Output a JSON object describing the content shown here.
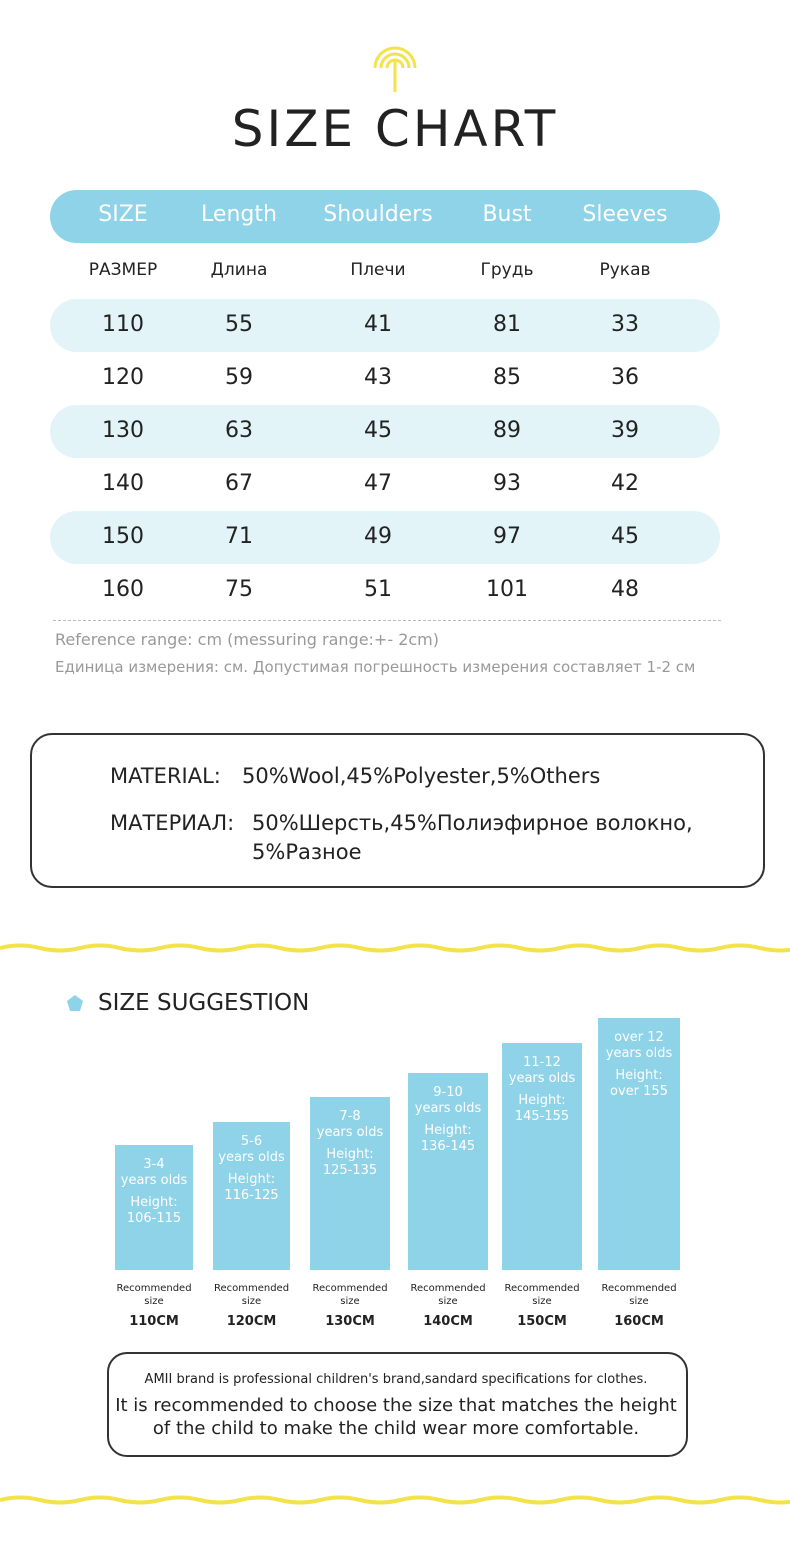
{
  "title": "SIZE CHART",
  "table": {
    "header": [
      "SIZE",
      "Length",
      "Shoulders",
      "Bust",
      "Sleeves"
    ],
    "header_ru": [
      "РАЗМЕР",
      "Длина",
      "Плечи",
      "Грудь",
      "Рукав"
    ],
    "rows": [
      [
        110,
        55,
        41,
        81,
        33
      ],
      [
        120,
        59,
        43,
        85,
        36
      ],
      [
        130,
        63,
        45,
        89,
        39
      ],
      [
        140,
        67,
        47,
        93,
        42
      ],
      [
        150,
        71,
        49,
        97,
        45
      ],
      [
        160,
        75,
        51,
        101,
        48
      ]
    ]
  },
  "notes": [
    "Reference range: cm (messuring range:+- 2cm)",
    "Единица измерения: см. Допустимая погрешность измерения составляет 1-2 см"
  ],
  "material": {
    "label_en": "MATERIAL:",
    "text_en": "50%Wool,45%Polyester,5%Others",
    "label_ru": "МАТЕРИАЛ:",
    "text_ru": [
      "50%Шерсть,45%Полиэфирное волокно,",
      "5%Разное"
    ]
  },
  "suggestion": {
    "title": "SIZE SUGGESTION",
    "cards": [
      {
        "age": [
          "3-4",
          "years olds"
        ],
        "height_label": "Height:",
        "height": "106-115",
        "recommended": "Recommended size",
        "size": "110CM"
      },
      {
        "age": [
          "5-6",
          "years olds"
        ],
        "height_label": "Height:",
        "height": "116-125",
        "recommended": "Recommended size",
        "size": "120CM"
      },
      {
        "age": [
          "7-8",
          "years olds"
        ],
        "height_label": "Height:",
        "height": "125-135",
        "recommended": "Recommended size",
        "size": "130CM"
      },
      {
        "age": [
          "9-10",
          "years olds"
        ],
        "height_label": "Height:",
        "height": "136-145",
        "recommended": "Recommended size",
        "size": "140CM"
      },
      {
        "age": [
          "11-12",
          "years olds"
        ],
        "height_label": "Height:",
        "height": "145-155",
        "recommended": "Recommended size",
        "size": "150CM"
      },
      {
        "age": [
          "over 12",
          "years olds"
        ],
        "height_label": "Height:",
        "height": "over 155",
        "recommended": "Recommended size",
        "size": "160CM"
      }
    ]
  },
  "footer": {
    "lines": [
      "AMII brand is professional children's brand,sandard specifications for clothes.",
      "It is recommended to choose the size that matches the height",
      "of the child to make the child wear more comfortable."
    ]
  }
}
